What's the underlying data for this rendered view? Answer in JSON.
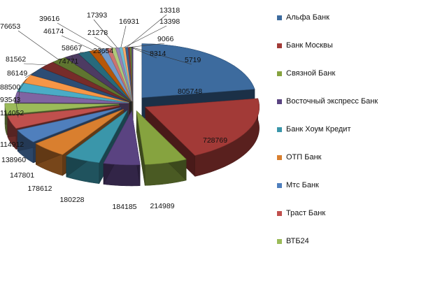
{
  "chart_data": {
    "type": "pie",
    "title": "",
    "slices": [
      {
        "label": "Альфа Банк",
        "value": 805748,
        "color": "#3d6b9e"
      },
      {
        "label": "Банк Москвы",
        "value": 728769,
        "color": "#a23a37"
      },
      {
        "label": "Связной Банк",
        "value": 214989,
        "color": "#86a33f"
      },
      {
        "label": "Восточный экспресс Банк",
        "value": 184185,
        "color": "#5a4381"
      },
      {
        "label": "Банк Хоум Кредит",
        "value": 180228,
        "color": "#3a96aa"
      },
      {
        "label": "ОТП Банк",
        "value": 178612,
        "color": "#d97f2f"
      },
      {
        "label": "Мтс Банк",
        "value": 147801,
        "color": "#4f7fbd"
      },
      {
        "label": "Траст Банк",
        "value": 138960,
        "color": "#c0504d"
      },
      {
        "label": "ВТБ24",
        "value": 114912,
        "color": "#9bbb59"
      },
      {
        "label": "",
        "value": 114052,
        "color": "#8064a2"
      },
      {
        "label": "",
        "value": 93543,
        "color": "#4bacc6"
      },
      {
        "label": "",
        "value": 88500,
        "color": "#f79646"
      },
      {
        "label": "",
        "value": 86149,
        "color": "#2c4d75"
      },
      {
        "label": "",
        "value": 81562,
        "color": "#772c2a"
      },
      {
        "label": "",
        "value": 76653,
        "color": "#5f7530"
      },
      {
        "label": "",
        "value": 74771,
        "color": "#4d3b62"
      },
      {
        "label": "",
        "value": 58667,
        "color": "#276a7c"
      },
      {
        "label": "",
        "value": 46174,
        "color": "#b65708"
      },
      {
        "label": "",
        "value": 39616,
        "color": "#729aca"
      },
      {
        "label": "",
        "value": 23654,
        "color": "#cd7371"
      },
      {
        "label": "",
        "value": 21278,
        "color": "#afc97a"
      },
      {
        "label": "",
        "value": 17393,
        "color": "#9983b5"
      },
      {
        "label": "",
        "value": 16931,
        "color": "#6fbdd1"
      },
      {
        "label": "",
        "value": 13398,
        "color": "#f9ab6b"
      },
      {
        "label": "",
        "value": 13318,
        "color": "#3a5f8f"
      },
      {
        "label": "",
        "value": 9066,
        "color": "#8c3836"
      },
      {
        "label": "",
        "value": 8314,
        "color": "#6c8a35"
      },
      {
        "label": "",
        "value": 5719,
        "color": "#5b4980"
      }
    ],
    "legend": {
      "placement": "right"
    }
  }
}
